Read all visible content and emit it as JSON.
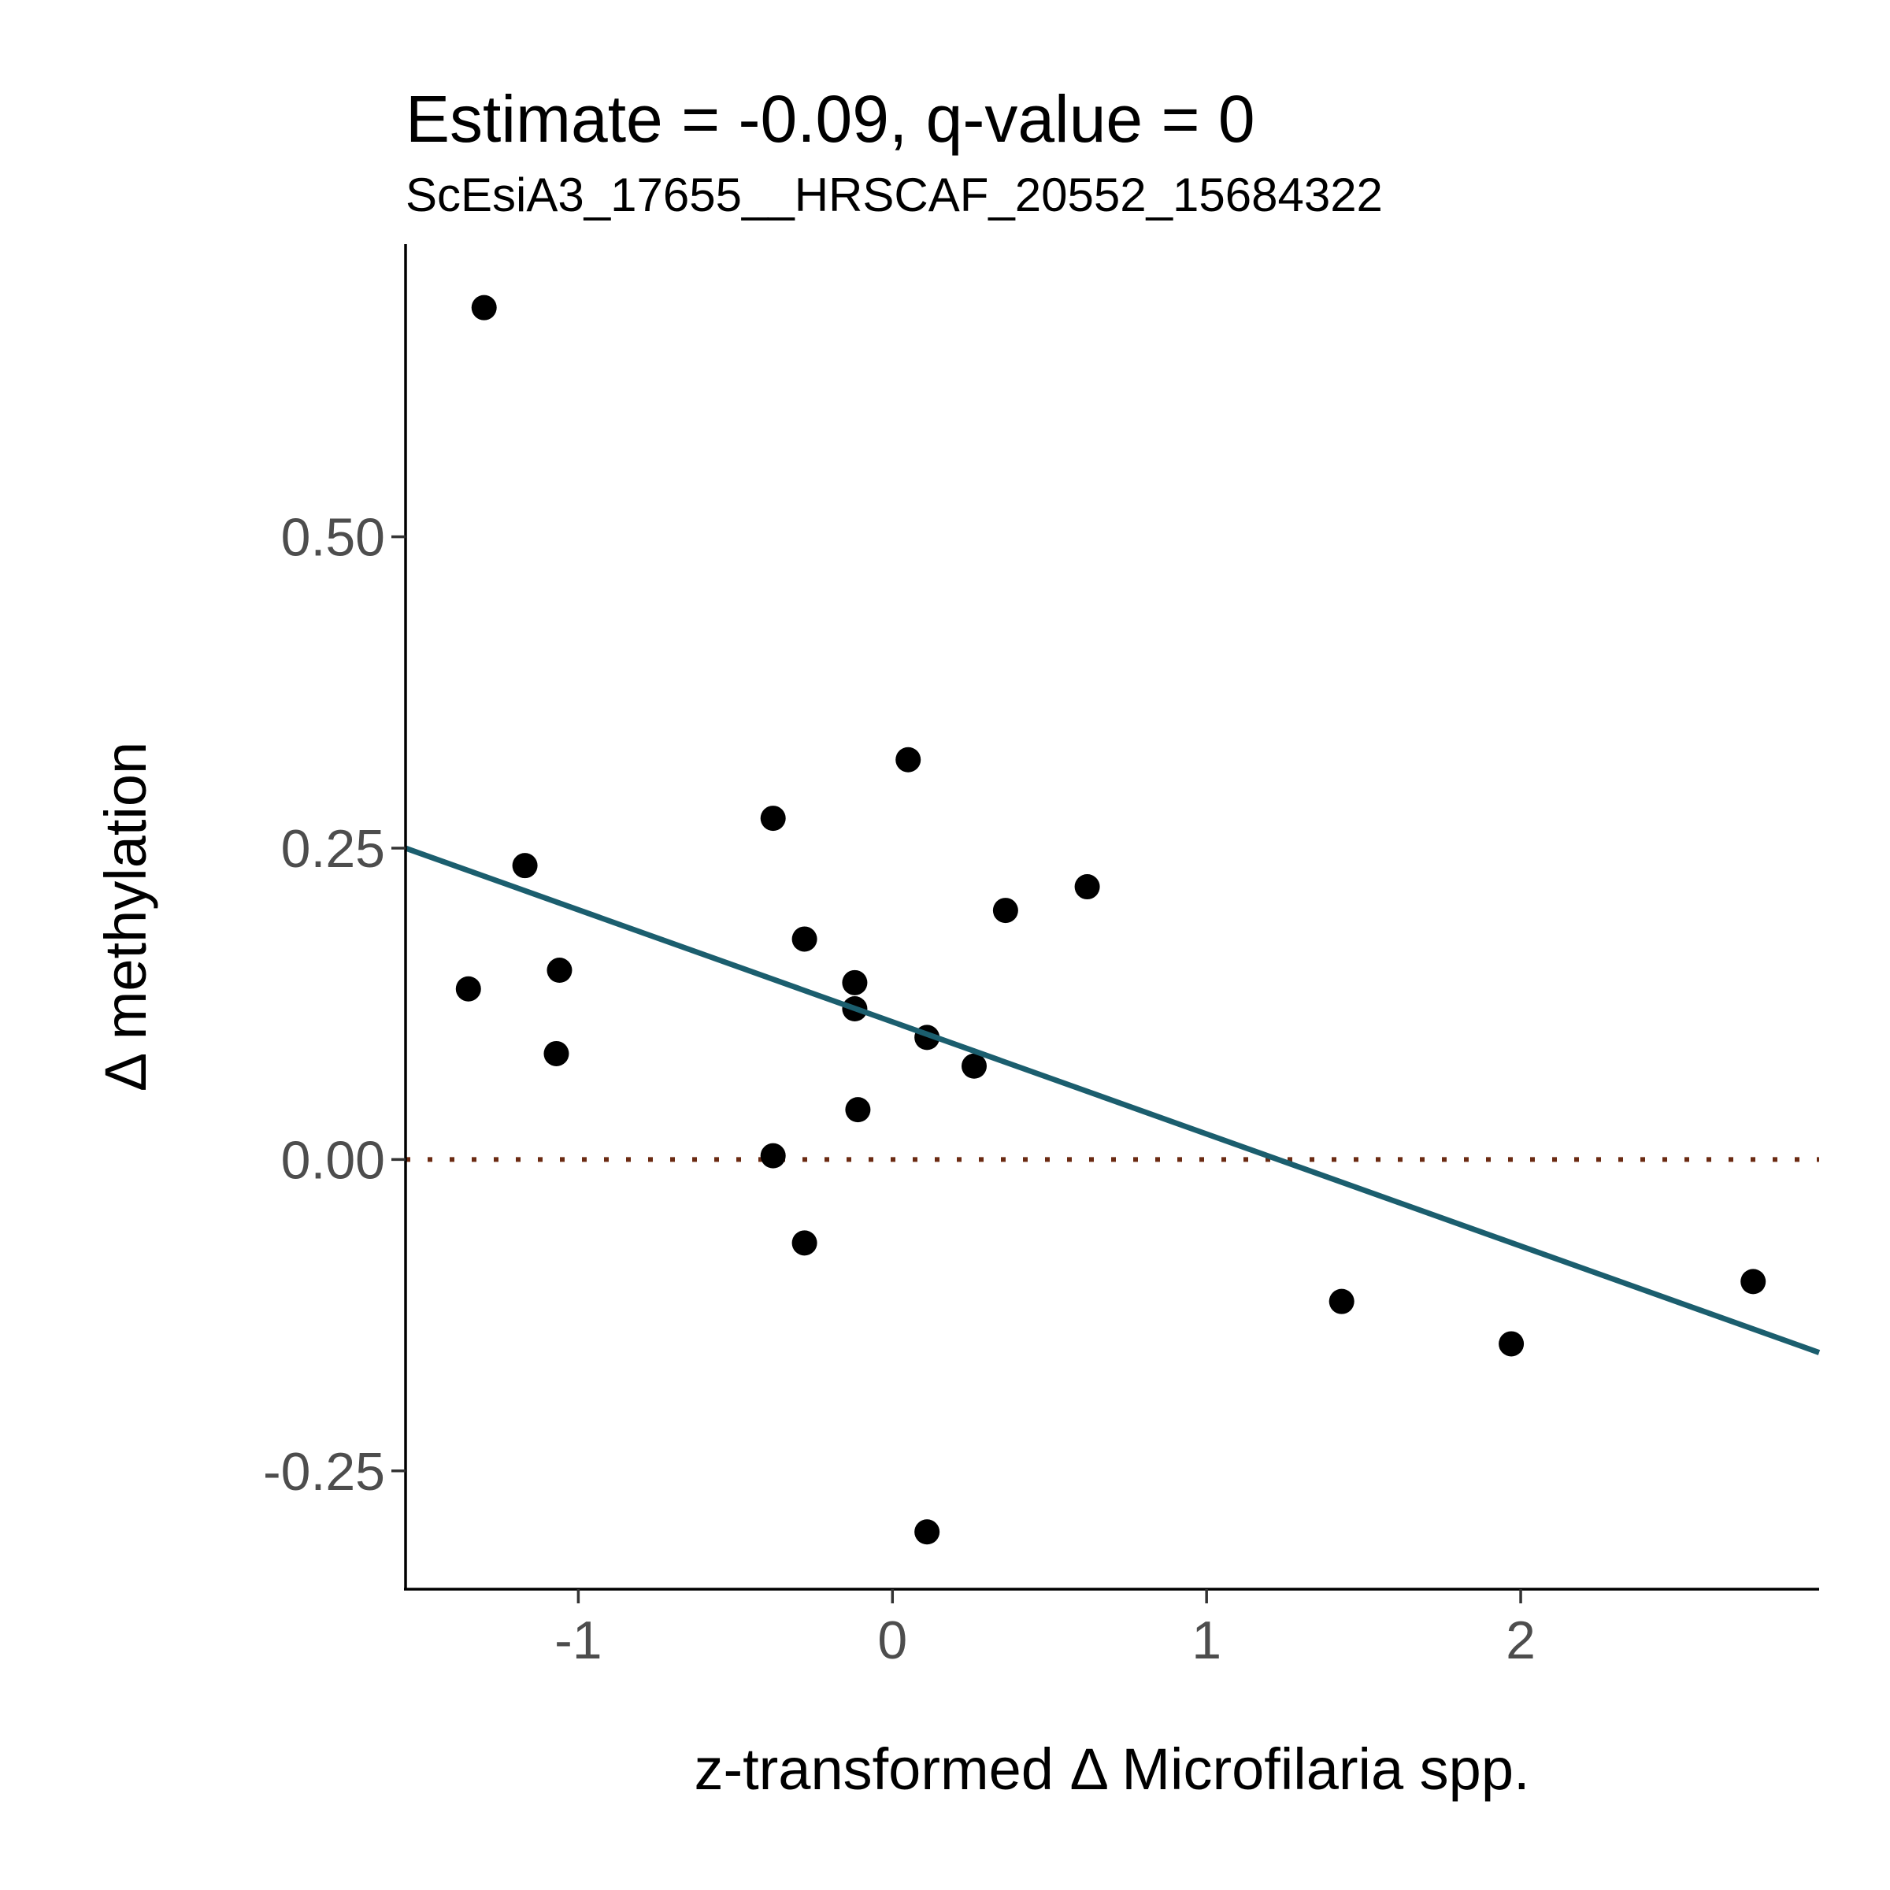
{
  "chart_data": {
    "type": "scatter",
    "title": "Estimate = -0.09, q-value = 0",
    "subtitle": "ScEsiA3_17655__HRSCAF_20552_15684322",
    "xlabel": "z-transformed Δ Microfilaria spp.",
    "ylabel": "Δ methylation",
    "xlim": [
      -1.55,
      2.95
    ],
    "ylim": [
      -0.345,
      0.735
    ],
    "x_ticks": [
      -1,
      0,
      1,
      2
    ],
    "x_tick_labels": [
      "-1",
      "0",
      "1",
      "2"
    ],
    "y_ticks": [
      -0.25,
      0,
      0.25,
      0.5
    ],
    "y_tick_labels": [
      "-0.25",
      "0.00",
      "0.25",
      "0.50"
    ],
    "grid": false,
    "points": [
      {
        "x": -1.3,
        "y": 0.684
      },
      {
        "x": -1.35,
        "y": 0.137
      },
      {
        "x": -1.17,
        "y": 0.236
      },
      {
        "x": -1.06,
        "y": 0.152
      },
      {
        "x": -1.07,
        "y": 0.085
      },
      {
        "x": -0.38,
        "y": 0.274
      },
      {
        "x": -0.28,
        "y": 0.177
      },
      {
        "x": -0.38,
        "y": 0.003
      },
      {
        "x": -0.28,
        "y": -0.067
      },
      {
        "x": -0.12,
        "y": 0.142
      },
      {
        "x": -0.12,
        "y": 0.121
      },
      {
        "x": -0.11,
        "y": 0.04
      },
      {
        "x": 0.05,
        "y": 0.321
      },
      {
        "x": 0.11,
        "y": 0.098
      },
      {
        "x": 0.11,
        "y": -0.299
      },
      {
        "x": 0.26,
        "y": 0.075
      },
      {
        "x": 0.36,
        "y": 0.2
      },
      {
        "x": 0.62,
        "y": 0.219
      },
      {
        "x": 1.43,
        "y": -0.114
      },
      {
        "x": 1.97,
        "y": -0.148
      },
      {
        "x": 2.74,
        "y": -0.098
      }
    ],
    "fit_line": {
      "x": [
        -1.55,
        2.95
      ],
      "y": [
        0.25,
        -0.155
      ],
      "color": "#1b5e6e"
    },
    "reference_line": {
      "y": 0,
      "style": "dotted",
      "color": "#6b2a12"
    },
    "point_color": "#000000"
  }
}
